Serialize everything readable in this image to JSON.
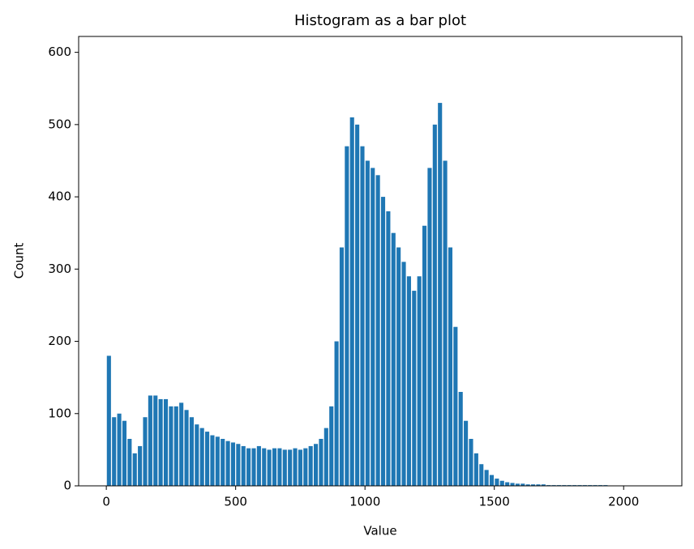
{
  "chart_data": {
    "type": "histogram",
    "title": "Histogram as a bar plot",
    "xlabel": "Value",
    "ylabel": "Count",
    "color": "#1f77b4",
    "bins": [
      0,
      20,
      40,
      60,
      80,
      100,
      120,
      140,
      160,
      180,
      200,
      220,
      240,
      260,
      280,
      300,
      320,
      340,
      360,
      380,
      400,
      420,
      440,
      460,
      480,
      500,
      520,
      540,
      560,
      580,
      600,
      620,
      640,
      660,
      680,
      700,
      720,
      740,
      760,
      780,
      800,
      820,
      840,
      860,
      880,
      900,
      920,
      940,
      960,
      980,
      1000,
      1020,
      1040,
      1060,
      1080,
      1100,
      1120,
      1140,
      1160,
      1180,
      1200,
      1220,
      1240,
      1260,
      1280,
      1300,
      1320,
      1340,
      1360,
      1380,
      1400,
      1420,
      1440,
      1460,
      1480,
      1500,
      1520,
      1540,
      1560,
      1580,
      1600,
      1620,
      1640,
      1660,
      1680,
      1700,
      1720,
      1740,
      1760,
      1780,
      1800,
      1820,
      1840,
      1860,
      1880,
      1900,
      1920,
      1940,
      1960,
      1980,
      2000
    ],
    "counts": [
      180,
      95,
      100,
      90,
      65,
      45,
      55,
      95,
      125,
      125,
      120,
      120,
      110,
      110,
      115,
      105,
      95,
      85,
      80,
      75,
      70,
      68,
      65,
      62,
      60,
      58,
      55,
      52,
      52,
      55,
      52,
      50,
      52,
      52,
      50,
      50,
      52,
      50,
      52,
      55,
      58,
      65,
      80,
      110,
      200,
      330,
      470,
      510,
      500,
      470,
      450,
      440,
      430,
      400,
      380,
      350,
      330,
      310,
      290,
      270,
      290,
      360,
      440,
      500,
      530,
      450,
      330,
      220,
      130,
      90,
      65,
      45,
      30,
      22,
      15,
      10,
      7,
      5,
      4,
      3,
      3,
      2,
      2,
      2,
      2,
      1,
      1,
      1,
      1,
      1,
      1,
      1,
      1,
      1,
      1,
      1,
      1,
      0,
      0,
      0
    ],
    "xlim": [
      -107,
      2225
    ],
    "ylim": [
      0,
      622
    ],
    "xticks": [
      0,
      500,
      1000,
      1500,
      2000
    ],
    "yticks": [
      0,
      100,
      200,
      300,
      400,
      500,
      600
    ]
  }
}
